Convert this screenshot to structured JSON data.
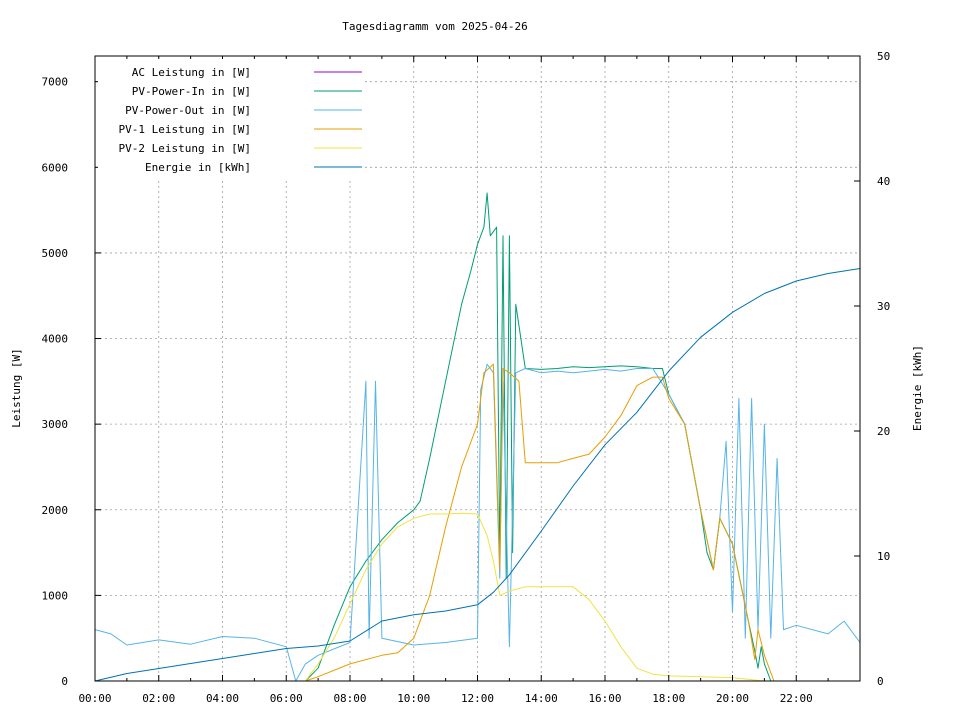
{
  "chart_data": {
    "type": "line",
    "title": "Tagesdiagramm vom 2025-04-26",
    "xlabel": "",
    "ylabel": "Leistung [W]",
    "y2label": "Energie [kWh]",
    "xlim": [
      0,
      24
    ],
    "ylim": [
      0,
      7300
    ],
    "y2lim": [
      0,
      50
    ],
    "grid": true,
    "legend_position": "top-left",
    "x_tick_labels": [
      "00:00",
      "02:00",
      "04:00",
      "06:00",
      "08:00",
      "10:00",
      "12:00",
      "14:00",
      "16:00",
      "18:00",
      "20:00",
      "22:00"
    ],
    "y_tick_labels": [
      "0",
      "1000",
      "2000",
      "3000",
      "4000",
      "5000",
      "6000",
      "7000"
    ],
    "y2_tick_labels": [
      "0",
      "10",
      "20",
      "30",
      "40",
      "50"
    ],
    "series": [
      {
        "name": "AC Leistung in [W]",
        "color": "#9400d3",
        "axis": "left",
        "points": []
      },
      {
        "name": "PV-Power-In in [W]",
        "color": "#009e73",
        "axis": "left",
        "points": [
          [
            0,
            0
          ],
          [
            6.6,
            0
          ],
          [
            7.0,
            150
          ],
          [
            7.5,
            650
          ],
          [
            8.0,
            1100
          ],
          [
            8.5,
            1400
          ],
          [
            9.0,
            1650
          ],
          [
            9.5,
            1850
          ],
          [
            10.0,
            2000
          ],
          [
            10.2,
            2100
          ],
          [
            10.5,
            2600
          ],
          [
            11.0,
            3500
          ],
          [
            11.5,
            4400
          ],
          [
            11.8,
            4800
          ],
          [
            12.0,
            5100
          ],
          [
            12.2,
            5300
          ],
          [
            12.3,
            5700
          ],
          [
            12.4,
            5200
          ],
          [
            12.6,
            5300
          ],
          [
            12.7,
            1400
          ],
          [
            12.8,
            5200
          ],
          [
            12.9,
            1200
          ],
          [
            13.0,
            5200
          ],
          [
            13.1,
            1500
          ],
          [
            13.2,
            4400
          ],
          [
            13.5,
            3650
          ],
          [
            14.0,
            3640
          ],
          [
            14.5,
            3650
          ],
          [
            15.0,
            3670
          ],
          [
            15.5,
            3660
          ],
          [
            16.0,
            3670
          ],
          [
            16.5,
            3680
          ],
          [
            17.0,
            3670
          ],
          [
            17.5,
            3650
          ],
          [
            17.8,
            3650
          ],
          [
            18.0,
            3350
          ],
          [
            18.5,
            3000
          ],
          [
            19.0,
            2000
          ],
          [
            19.2,
            1500
          ],
          [
            19.4,
            1300
          ],
          [
            19.6,
            1900
          ],
          [
            20.0,
            1600
          ],
          [
            20.5,
            700
          ],
          [
            20.7,
            350
          ],
          [
            20.8,
            150
          ],
          [
            20.9,
            400
          ],
          [
            21.0,
            200
          ],
          [
            21.2,
            0
          ],
          [
            24,
            0
          ]
        ]
      },
      {
        "name": "PV-Power-Out in [W]",
        "color": "#56b4e9",
        "axis": "left",
        "points": [
          [
            0,
            600
          ],
          [
            0.5,
            550
          ],
          [
            1.0,
            420
          ],
          [
            2.0,
            480
          ],
          [
            3.0,
            430
          ],
          [
            4.0,
            520
          ],
          [
            5.0,
            500
          ],
          [
            6.0,
            400
          ],
          [
            6.3,
            0
          ],
          [
            6.6,
            200
          ],
          [
            7.0,
            300
          ],
          [
            8.0,
            450
          ],
          [
            8.5,
            3500
          ],
          [
            8.6,
            500
          ],
          [
            8.8,
            3500
          ],
          [
            9.0,
            500
          ],
          [
            10.0,
            420
          ],
          [
            11.0,
            450
          ],
          [
            12.0,
            500
          ],
          [
            12.1,
            3400
          ],
          [
            12.3,
            3700
          ],
          [
            12.5,
            3600
          ],
          [
            12.7,
            1200
          ],
          [
            12.8,
            3500
          ],
          [
            13.0,
            400
          ],
          [
            13.2,
            3600
          ],
          [
            13.5,
            3650
          ],
          [
            14.0,
            3600
          ],
          [
            14.5,
            3620
          ],
          [
            15.0,
            3600
          ],
          [
            15.5,
            3620
          ],
          [
            16.0,
            3640
          ],
          [
            16.5,
            3620
          ],
          [
            17.0,
            3650
          ],
          [
            17.5,
            3650
          ],
          [
            18.0,
            3350
          ],
          [
            18.5,
            3000
          ],
          [
            19.0,
            2000
          ],
          [
            19.4,
            1300
          ],
          [
            19.6,
            1900
          ],
          [
            19.8,
            2800
          ],
          [
            20.0,
            800
          ],
          [
            20.2,
            3300
          ],
          [
            20.4,
            500
          ],
          [
            20.6,
            3300
          ],
          [
            20.8,
            600
          ],
          [
            21.0,
            3000
          ],
          [
            21.2,
            500
          ],
          [
            21.4,
            2600
          ],
          [
            21.6,
            600
          ],
          [
            22.0,
            650
          ],
          [
            23.0,
            550
          ],
          [
            23.5,
            700
          ],
          [
            24,
            450
          ]
        ]
      },
      {
        "name": "PV-1 Leistung in [W]",
        "color": "#e69f00",
        "axis": "left",
        "points": [
          [
            0,
            0
          ],
          [
            6.6,
            0
          ],
          [
            7.0,
            50
          ],
          [
            8.0,
            200
          ],
          [
            9.0,
            300
          ],
          [
            9.5,
            330
          ],
          [
            10.0,
            500
          ],
          [
            10.5,
            1000
          ],
          [
            11.0,
            1800
          ],
          [
            11.5,
            2500
          ],
          [
            12.0,
            3000
          ],
          [
            12.2,
            3600
          ],
          [
            12.5,
            3700
          ],
          [
            12.7,
            1300
          ],
          [
            12.8,
            3650
          ],
          [
            13.0,
            3600
          ],
          [
            13.3,
            3500
          ],
          [
            13.5,
            2550
          ],
          [
            14.0,
            2550
          ],
          [
            14.5,
            2550
          ],
          [
            15.0,
            2600
          ],
          [
            15.5,
            2650
          ],
          [
            16.0,
            2850
          ],
          [
            16.5,
            3100
          ],
          [
            17.0,
            3450
          ],
          [
            17.5,
            3550
          ],
          [
            17.8,
            3550
          ],
          [
            18.0,
            3300
          ],
          [
            18.5,
            3000
          ],
          [
            19.0,
            2000
          ],
          [
            19.4,
            1300
          ],
          [
            19.6,
            1900
          ],
          [
            20.0,
            1600
          ],
          [
            20.5,
            700
          ],
          [
            20.7,
            250
          ],
          [
            20.8,
            600
          ],
          [
            21.0,
            300
          ],
          [
            21.3,
            0
          ],
          [
            24,
            0
          ]
        ]
      },
      {
        "name": "PV-2 Leistung in [W]",
        "color": "#f0e442",
        "axis": "left",
        "points": [
          [
            0,
            0
          ],
          [
            6.6,
            0
          ],
          [
            7.0,
            200
          ],
          [
            7.5,
            500
          ],
          [
            8.0,
            900
          ],
          [
            8.5,
            1300
          ],
          [
            9.0,
            1600
          ],
          [
            9.5,
            1800
          ],
          [
            10.0,
            1900
          ],
          [
            10.5,
            1950
          ],
          [
            11.0,
            1950
          ],
          [
            11.5,
            1960
          ],
          [
            12.0,
            1950
          ],
          [
            12.3,
            1700
          ],
          [
            12.5,
            1400
          ],
          [
            12.7,
            1000
          ],
          [
            13.0,
            1050
          ],
          [
            13.5,
            1100
          ],
          [
            14.0,
            1100
          ],
          [
            14.5,
            1100
          ],
          [
            15.0,
            1100
          ],
          [
            15.5,
            950
          ],
          [
            16.0,
            700
          ],
          [
            16.5,
            400
          ],
          [
            17.0,
            150
          ],
          [
            17.5,
            80
          ],
          [
            18.0,
            60
          ],
          [
            19.0,
            50
          ],
          [
            20.0,
            40
          ],
          [
            21.0,
            0
          ],
          [
            24,
            0
          ]
        ]
      },
      {
        "name": "Energie in [kWh]",
        "color": "#0072b2",
        "axis": "right",
        "points": [
          [
            0,
            0
          ],
          [
            1.0,
            0.6
          ],
          [
            2.0,
            1.0
          ],
          [
            3.0,
            1.4
          ],
          [
            4.0,
            1.8
          ],
          [
            5.0,
            2.2
          ],
          [
            6.0,
            2.6
          ],
          [
            7.0,
            2.8
          ],
          [
            8.0,
            3.2
          ],
          [
            9.0,
            4.8
          ],
          [
            10.0,
            5.3
          ],
          [
            11.0,
            5.6
          ],
          [
            12.0,
            6.1
          ],
          [
            12.5,
            7.1
          ],
          [
            13.0,
            8.5
          ],
          [
            14.0,
            12.0
          ],
          [
            15.0,
            15.6
          ],
          [
            16.0,
            18.9
          ],
          [
            17.0,
            21.5
          ],
          [
            18.0,
            24.8
          ],
          [
            19.0,
            27.5
          ],
          [
            20.0,
            29.5
          ],
          [
            21.0,
            31.0
          ],
          [
            22.0,
            32.0
          ],
          [
            23.0,
            32.6
          ],
          [
            24,
            33.0
          ]
        ]
      }
    ]
  }
}
